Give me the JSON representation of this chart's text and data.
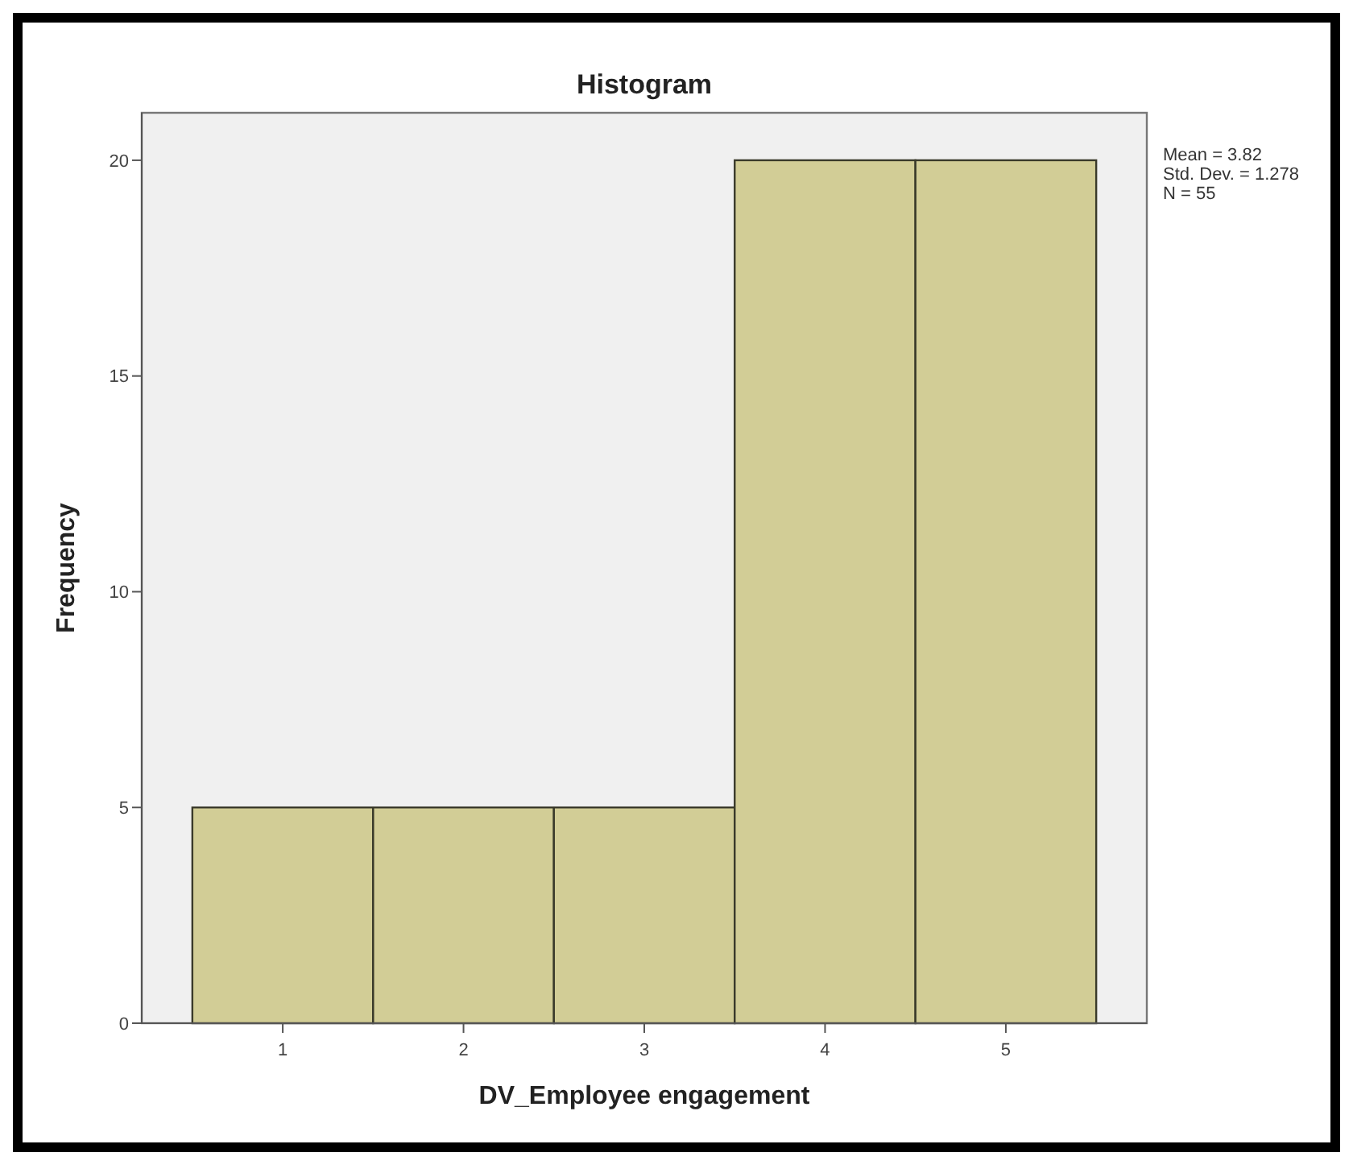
{
  "chart_data": {
    "type": "histogram",
    "title": "Histogram",
    "xlabel": "DV_Employee engagement",
    "ylabel": "Frequency",
    "bins": [
      0.5,
      1.5,
      2.5,
      3.5,
      4.5,
      5.5
    ],
    "values": [
      5,
      5,
      5,
      20,
      20
    ],
    "color": "#d2cd96",
    "xlim": [
      0.22,
      5.78
    ],
    "xticks": [
      1,
      2,
      3,
      4,
      5
    ],
    "ylim": [
      0,
      21.1
    ],
    "yticks": [
      0,
      5,
      10,
      15,
      20
    ],
    "grid": false,
    "annotations": [
      "Mean = 3.82",
      "Std. Dev. = 1.278",
      "N = 55"
    ]
  }
}
